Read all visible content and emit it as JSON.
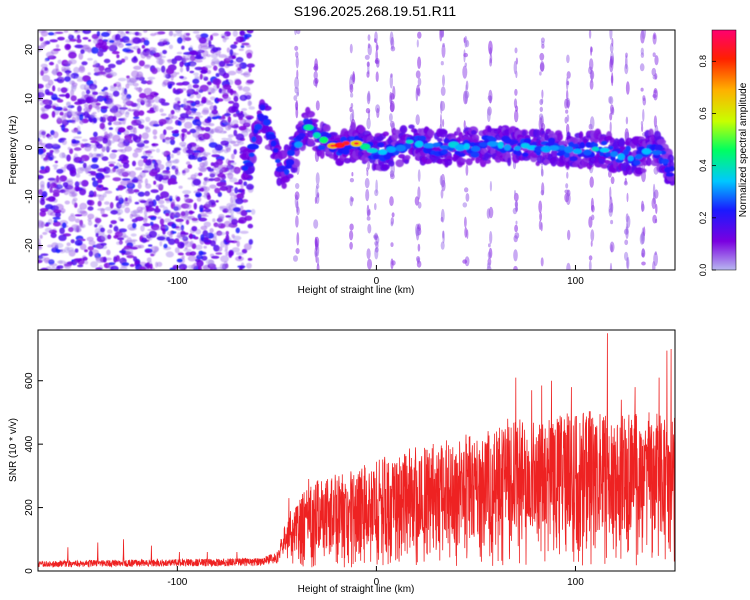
{
  "title": "S196.2025.268.19.51.R11",
  "chart_data": [
    {
      "type": "heatmap",
      "name": "spectrogram",
      "xlabel": "Height of straight line (km)",
      "ylabel": "Frequency (Hz)",
      "xlim": [
        -170,
        150
      ],
      "ylim": [
        -25,
        24
      ],
      "xticks": [
        -100,
        0,
        100
      ],
      "yticks": [
        -20,
        -10,
        0,
        10,
        20
      ],
      "colorbar": {
        "label": "Normalized spectral amplitude",
        "range": [
          0,
          0.92
        ],
        "ticks": [
          0.0,
          0.2,
          0.4,
          0.6,
          0.8
        ],
        "colormap": [
          "#b8b8f0",
          "#7a00e0",
          "#1a1aff",
          "#00c8ff",
          "#00ff60",
          "#c8ff00",
          "#ffb000",
          "#ff2000",
          "#ff0070"
        ]
      },
      "features": {
        "noise_region_x": [
          -170,
          -63
        ],
        "ridge_points": [
          [
            -64,
            -3
          ],
          [
            -60,
            3
          ],
          [
            -57,
            7
          ],
          [
            -55,
            5
          ],
          [
            -48,
            -5
          ],
          [
            -44,
            -3
          ],
          [
            -40,
            0
          ],
          [
            -35,
            5
          ],
          [
            -30,
            2
          ],
          [
            -20,
            0
          ],
          [
            -10,
            1
          ],
          [
            0,
            -1
          ],
          [
            10,
            0
          ],
          [
            20,
            1
          ],
          [
            30,
            0
          ],
          [
            40,
            0
          ],
          [
            50,
            0
          ],
          [
            60,
            1
          ],
          [
            70,
            0
          ],
          [
            80,
            0
          ],
          [
            90,
            0
          ],
          [
            100,
            -1
          ],
          [
            110,
            0
          ],
          [
            120,
            -1
          ],
          [
            130,
            -2
          ],
          [
            140,
            0
          ],
          [
            145,
            -3
          ],
          [
            148,
            -5
          ]
        ],
        "peak_amplitude_x": -18,
        "streak_x": [
          -40,
          -30,
          -12,
          -4,
          0,
          8,
          21,
          33,
          45,
          57,
          70,
          83,
          96,
          108,
          118,
          126,
          134,
          140
        ]
      }
    },
    {
      "type": "line",
      "name": "snr",
      "xlabel": "Height of straight line (km)",
      "ylabel": "SNR (10 * v/v)",
      "xlim": [
        -170,
        150
      ],
      "ylim": [
        0,
        760
      ],
      "xticks": [
        -100,
        0,
        100
      ],
      "yticks": [
        0,
        200,
        400,
        600
      ],
      "color": "#ee2222",
      "envelope": [
        [
          -170,
          22
        ],
        [
          -120,
          25
        ],
        [
          -60,
          28
        ],
        [
          -50,
          40
        ],
        [
          -45,
          115
        ],
        [
          -40,
          160
        ],
        [
          -30,
          200
        ],
        [
          -20,
          210
        ],
        [
          -10,
          220
        ],
        [
          0,
          250
        ],
        [
          10,
          260
        ],
        [
          20,
          270
        ],
        [
          30,
          280
        ],
        [
          40,
          290
        ],
        [
          50,
          300
        ],
        [
          60,
          310
        ],
        [
          70,
          330
        ],
        [
          80,
          335
        ],
        [
          90,
          340
        ],
        [
          100,
          345
        ],
        [
          110,
          350
        ],
        [
          120,
          350
        ],
        [
          130,
          350
        ],
        [
          140,
          345
        ],
        [
          150,
          340
        ]
      ],
      "peaks": [
        [
          -155,
          75
        ],
        [
          -140,
          90
        ],
        [
          -127,
          100
        ],
        [
          -113,
          80
        ],
        [
          -99,
          60
        ],
        [
          -85,
          60
        ],
        [
          -70,
          60
        ],
        [
          -44,
          230
        ],
        [
          -34,
          290
        ],
        [
          -27,
          255
        ],
        [
          -19,
          260
        ],
        [
          -12,
          250
        ],
        [
          -5,
          285
        ],
        [
          8,
          290
        ],
        [
          18,
          320
        ],
        [
          29,
          290
        ],
        [
          42,
          350
        ],
        [
          45,
          430
        ],
        [
          53,
          345
        ],
        [
          59,
          400
        ],
        [
          66,
          480
        ],
        [
          70,
          610
        ],
        [
          78,
          570
        ],
        [
          83,
          585
        ],
        [
          88,
          600
        ],
        [
          93,
          470
        ],
        [
          98,
          580
        ],
        [
          108,
          480
        ],
        [
          116,
          750
        ],
        [
          123,
          540
        ],
        [
          130,
          580
        ],
        [
          137,
          500
        ],
        [
          142,
          610
        ],
        [
          146,
          695
        ],
        [
          148,
          700
        ]
      ]
    }
  ]
}
